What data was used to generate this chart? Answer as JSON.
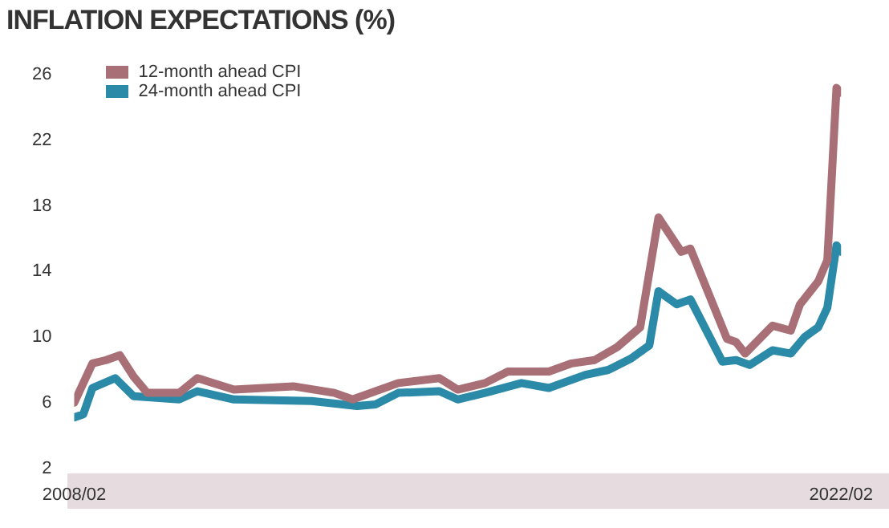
{
  "chart_data": {
    "type": "line",
    "title": "INFLATION EXPECTATIONS (%)",
    "xlim": [
      "2008-02",
      "2022-02"
    ],
    "xticks": [
      {
        "value": "2008-02",
        "label": "2008/02"
      },
      {
        "value": "2022-02",
        "label": "2022/02"
      }
    ],
    "ylim": [
      2,
      26
    ],
    "yticks": [
      2,
      6,
      10,
      14,
      18,
      22,
      26
    ],
    "grid": false,
    "legend": "top left",
    "marker": "none",
    "line_style": "solid",
    "series": [
      {
        "name": "12-month ahead CPI",
        "color": "#a86f76",
        "x": [
          "2008-02",
          "2008-06",
          "2008-09",
          "2008-12",
          "2009-03",
          "2009-06",
          "2010-01",
          "2010-05",
          "2011-01",
          "2012-02",
          "2012-11",
          "2013-03",
          "2014-01",
          "2014-10",
          "2015-02",
          "2015-08",
          "2016-01",
          "2016-10",
          "2017-03",
          "2017-08",
          "2018-01",
          "2018-06",
          "2018-10",
          "2019-03",
          "2019-05",
          "2020-01",
          "2020-03",
          "2020-05",
          "2020-11",
          "2021-03",
          "2021-05",
          "2021-09",
          "2021-11",
          "2022-01",
          "2022-02"
        ],
        "values": [
          6.0,
          8.4,
          8.6,
          8.9,
          7.6,
          6.6,
          6.6,
          7.5,
          6.8,
          7.0,
          6.6,
          6.2,
          7.2,
          7.5,
          6.8,
          7.2,
          7.9,
          7.9,
          8.4,
          8.6,
          9.4,
          10.6,
          17.3,
          15.2,
          15.4,
          9.9,
          9.7,
          9.0,
          10.7,
          10.4,
          12.0,
          13.4,
          14.7,
          25.2,
          24.9
        ]
      },
      {
        "name": "24-month ahead CPI",
        "color": "#2a8aa8",
        "x": [
          "2008-02",
          "2008-04",
          "2008-06",
          "2008-11",
          "2009-03",
          "2010-01",
          "2010-05",
          "2011-01",
          "2012-06",
          "2013-04",
          "2013-08",
          "2014-01",
          "2014-10",
          "2015-02",
          "2015-08",
          "2016-04",
          "2016-10",
          "2017-06",
          "2017-11",
          "2018-04",
          "2018-08",
          "2018-10",
          "2019-02",
          "2019-05",
          "2019-12",
          "2020-03",
          "2020-06",
          "2020-11",
          "2021-03",
          "2021-06",
          "2021-09",
          "2021-11",
          "2022-01",
          "2022-02"
        ],
        "values": [
          5.1,
          5.3,
          6.9,
          7.5,
          6.4,
          6.2,
          6.7,
          6.2,
          6.1,
          5.8,
          5.9,
          6.6,
          6.7,
          6.2,
          6.6,
          7.2,
          6.9,
          7.7,
          8.0,
          8.7,
          9.5,
          12.8,
          12.0,
          12.3,
          8.5,
          8.6,
          8.3,
          9.2,
          9.0,
          10.0,
          10.6,
          11.8,
          15.6,
          15.2
        ]
      }
    ]
  }
}
